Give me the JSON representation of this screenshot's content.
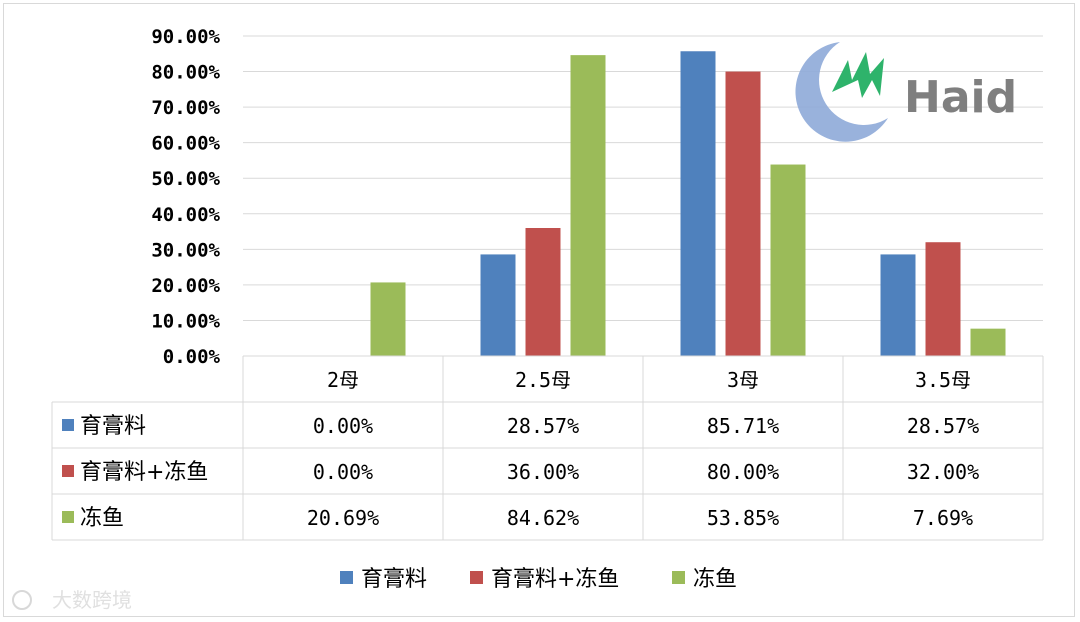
{
  "chart_data": {
    "type": "bar",
    "categories": [
      "2母",
      "2.5母",
      "3母",
      "3.5母"
    ],
    "series": [
      {
        "name": "育膏料",
        "color": "#4f81bd",
        "values": [
          0.0,
          28.57,
          85.71,
          28.57
        ],
        "labels": [
          "0.00%",
          "28.57%",
          "85.71%",
          "28.57%"
        ]
      },
      {
        "name": "育膏料+冻鱼",
        "color": "#c0504d",
        "values": [
          0.0,
          36.0,
          80.0,
          32.0
        ],
        "labels": [
          "0.00%",
          "36.00%",
          "80.00%",
          "32.00%"
        ]
      },
      {
        "name": "冻鱼",
        "color": "#9bbb59",
        "values": [
          20.69,
          84.62,
          53.85,
          7.69
        ],
        "labels": [
          "20.69%",
          "84.62%",
          "53.85%",
          "7.69%"
        ]
      }
    ],
    "ylim": [
      0,
      90
    ],
    "yticks": [
      "0.00%",
      "10.00%",
      "20.00%",
      "30.00%",
      "40.00%",
      "50.00%",
      "60.00%",
      "70.00%",
      "80.00%",
      "90.00%"
    ],
    "grid": true,
    "legend": "bottom",
    "data_table": true
  },
  "logo": {
    "text": "Haid"
  },
  "watermark": {
    "text": "大数跨境"
  }
}
